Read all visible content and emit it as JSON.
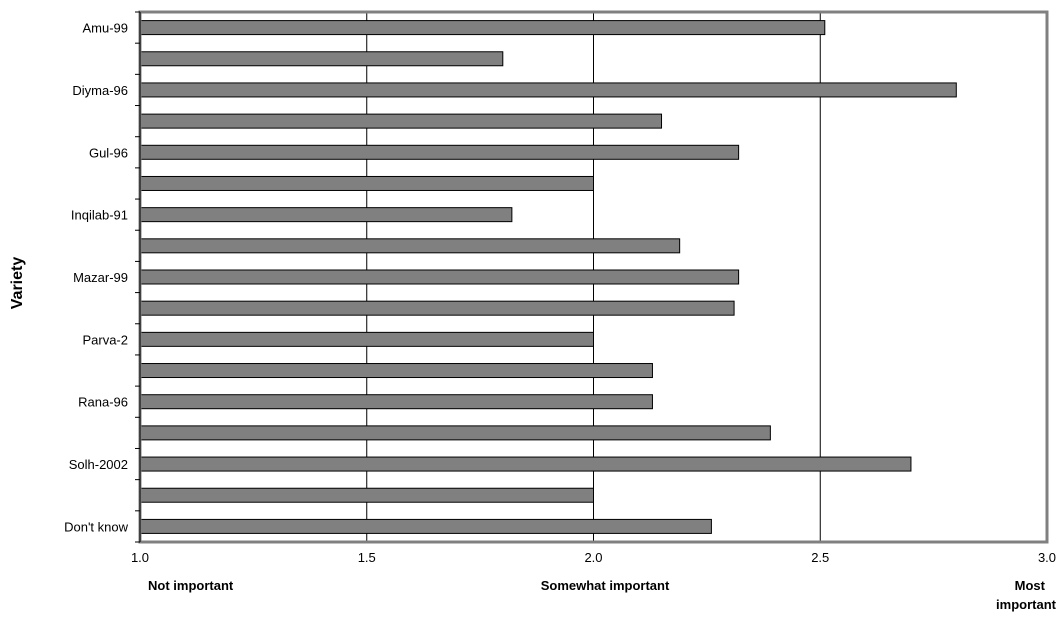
{
  "chart_data": {
    "type": "bar",
    "orientation": "horizontal",
    "ylabel": "Variety",
    "categories": [
      "Amu-99",
      "",
      "Diyma-96",
      "",
      "Gul-96",
      "",
      "Inqilab-91",
      "",
      "Mazar-99",
      "",
      "Parva-2",
      "",
      "Rana-96",
      "",
      "Solh-2002",
      "",
      "Don't know"
    ],
    "values": [
      2.51,
      1.8,
      2.8,
      2.15,
      2.32,
      2.0,
      1.82,
      2.19,
      2.32,
      2.31,
      2.0,
      2.13,
      2.13,
      2.39,
      2.7,
      2.0,
      2.26
    ],
    "xlim": [
      1.0,
      3.0
    ],
    "x_ticks": [
      "1.0",
      "1.5",
      "2.0",
      "2.5",
      "3.0"
    ],
    "x_anchor_labels": [
      "Not important",
      "Somewhat important",
      "Most",
      "important"
    ],
    "grid": "vertical",
    "legend": "none",
    "colors": {
      "bar": "#808080",
      "bar_border": "#000000",
      "frame": "#808080",
      "grid": "#000000"
    }
  }
}
